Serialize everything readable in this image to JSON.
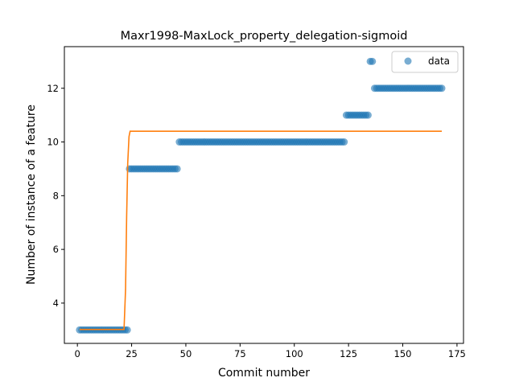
{
  "chart_data": {
    "type": "scatter",
    "title": "Maxr1998-MaxLock_property_delegation-sigmoid",
    "xlabel": "Commit number",
    "ylabel": "Number of instance of a feature",
    "xlim": [
      -6,
      178
    ],
    "ylim": [
      2.5,
      13.55
    ],
    "xticks": [
      0,
      25,
      50,
      75,
      100,
      125,
      150,
      175
    ],
    "yticks": [
      4,
      6,
      8,
      10,
      12
    ],
    "grid": false,
    "legend": {
      "position": "top-right",
      "entries": [
        {
          "label": "data",
          "marker": "circle"
        }
      ]
    },
    "colors": {
      "data": "#1f77b4",
      "fit": "#ff7f0e"
    },
    "series": [
      {
        "name": "data",
        "kind": "scatter",
        "segments": [
          {
            "x_start": 1,
            "x_end": 23,
            "y": 3
          },
          {
            "x_start": 24,
            "x_end": 46,
            "y": 9
          },
          {
            "x_start": 47,
            "x_end": 123,
            "y": 10
          },
          {
            "x_start": 124,
            "x_end": 134,
            "y": 11
          },
          {
            "x_start": 135,
            "x_end": 136,
            "y": 13
          },
          {
            "x_start": 137,
            "x_end": 168,
            "y": 12
          }
        ]
      },
      {
        "kind": "line",
        "points": [
          [
            1,
            3.02
          ],
          [
            21.5,
            3.02
          ],
          [
            22.2,
            4.5
          ],
          [
            22.7,
            7.2
          ],
          [
            23.2,
            9.2
          ],
          [
            23.8,
            10.2
          ],
          [
            24.3,
            10.4
          ],
          [
            168,
            10.4
          ]
        ]
      }
    ]
  }
}
